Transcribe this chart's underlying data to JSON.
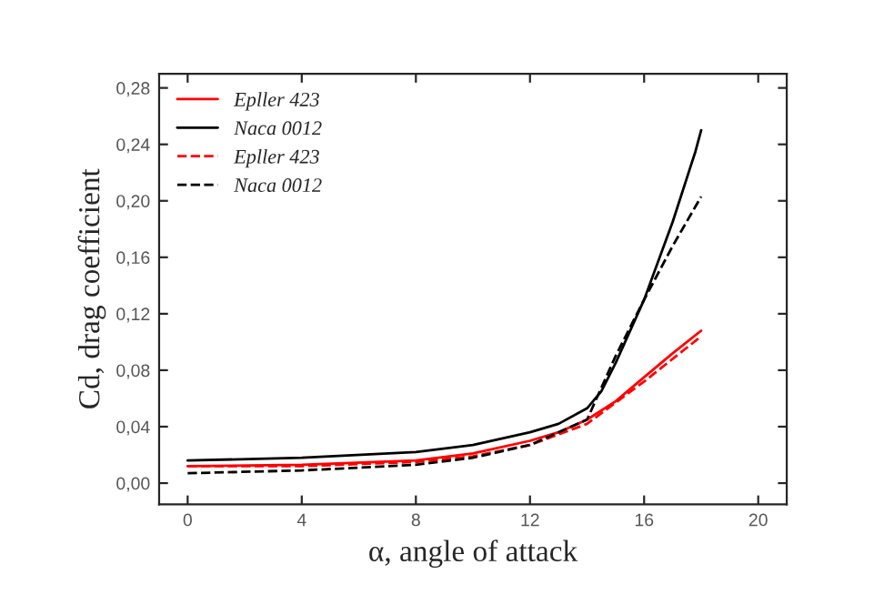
{
  "chart_data": {
    "type": "line",
    "xlabel": "α, angle of attack",
    "ylabel": "Cd, drag coefficient",
    "xlim": [
      -1,
      21
    ],
    "ylim": [
      -0.015,
      0.29
    ],
    "xticks": [
      0,
      4,
      8,
      12,
      16,
      20
    ],
    "yticks": [
      {
        "value": 0,
        "label": "0,00"
      },
      {
        "value": 0.04,
        "label": "0,04"
      },
      {
        "value": 0.08,
        "label": "0,08"
      },
      {
        "value": 0.12,
        "label": "0,12"
      },
      {
        "value": 0.16,
        "label": "0,16"
      },
      {
        "value": 0.2,
        "label": "0,20"
      },
      {
        "value": 0.24,
        "label": "0,24"
      },
      {
        "value": 0.28,
        "label": "0,28"
      }
    ],
    "grid": false,
    "legend": "top left",
    "marker": "none",
    "series": [
      {
        "name": "Epller 423",
        "color": "#ff0000",
        "line_style": "solid",
        "x": [
          0,
          4,
          8,
          10,
          12,
          13,
          14,
          15,
          16,
          17,
          18
        ],
        "values": [
          0.012,
          0.013,
          0.016,
          0.021,
          0.03,
          0.036,
          0.045,
          0.058,
          0.075,
          0.092,
          0.108
        ]
      },
      {
        "name": "Naca 0012",
        "color": "#000000",
        "line_style": "solid",
        "x": [
          0,
          4,
          8,
          10,
          12,
          13,
          14,
          14.5,
          15,
          16,
          17,
          17.8,
          18
        ],
        "values": [
          0.016,
          0.018,
          0.022,
          0.027,
          0.036,
          0.042,
          0.053,
          0.065,
          0.085,
          0.13,
          0.185,
          0.235,
          0.25
        ]
      },
      {
        "name": "Epller 423",
        "color": "#ff0000",
        "line_style": "dashed",
        "x": [
          0,
          4,
          8,
          10,
          12,
          14,
          16,
          18
        ],
        "values": [
          0.012,
          0.012,
          0.015,
          0.019,
          0.027,
          0.042,
          0.072,
          0.104
        ]
      },
      {
        "name": "Naca 0012",
        "color": "#000000",
        "line_style": "dashed",
        "x": [
          0,
          4,
          8,
          10,
          12,
          14,
          15,
          16,
          17,
          18
        ],
        "values": [
          0.007,
          0.009,
          0.013,
          0.018,
          0.027,
          0.045,
          0.09,
          0.13,
          0.168,
          0.203
        ]
      }
    ]
  }
}
